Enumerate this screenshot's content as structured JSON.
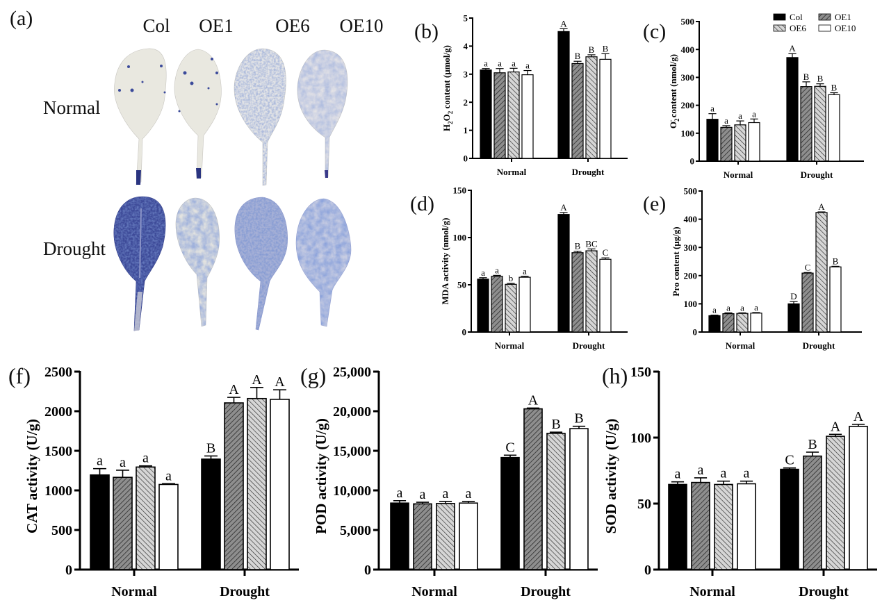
{
  "panel_a": {
    "label": "(a)",
    "columns": [
      "Col",
      "OE1",
      "OE6",
      "OE10"
    ],
    "rows": [
      "Normal",
      "Drought"
    ],
    "staining": {
      "Normal": [
        "sparse spots",
        "sparse spots",
        "moderate diffuse",
        "light diffuse"
      ],
      "Drought": [
        "intense",
        "moderate",
        "strong",
        "strong patchy"
      ]
    }
  },
  "legend": {
    "items": [
      {
        "name": "Col",
        "pattern": "solid-black"
      },
      {
        "name": "OE1",
        "pattern": "dark-hatch-forward"
      },
      {
        "name": "OE6",
        "pattern": "light-hatch-back"
      },
      {
        "name": "OE10",
        "pattern": "white"
      }
    ]
  },
  "chart_data": [
    {
      "id": "b",
      "label": "(b)",
      "type": "bar",
      "ylabel_parts": [
        "H",
        "2",
        "O",
        "2",
        " content (μmol/g)"
      ],
      "ylabel": "H2O2 content (μmol/g)",
      "categories": [
        "Normal",
        "Drought"
      ],
      "ylim": [
        0,
        5
      ],
      "yticks": [
        0,
        1,
        2,
        3,
        4,
        5
      ],
      "series": [
        {
          "name": "Col",
          "values": [
            3.15,
            4.52
          ],
          "errors": [
            0.05,
            0.1
          ],
          "letters": [
            "a",
            "A"
          ]
        },
        {
          "name": "OE1",
          "values": [
            3.05,
            3.38
          ],
          "errors": [
            0.15,
            0.08
          ],
          "letters": [
            "a",
            "B"
          ]
        },
        {
          "name": "OE6",
          "values": [
            3.08,
            3.62
          ],
          "errors": [
            0.13,
            0.07
          ],
          "letters": [
            "a",
            "B"
          ]
        },
        {
          "name": "OE10",
          "values": [
            2.98,
            3.53
          ],
          "errors": [
            0.15,
            0.2
          ],
          "letters": [
            "a",
            "B"
          ]
        }
      ]
    },
    {
      "id": "c",
      "label": "(c)",
      "type": "bar",
      "ylabel": "O2- content (nmol/g)",
      "categories": [
        "Normal",
        "Drought"
      ],
      "ylim": [
        0,
        500
      ],
      "yticks": [
        0,
        100,
        200,
        300,
        400,
        500
      ],
      "show_legend": true,
      "legend_position": "top-right",
      "series": [
        {
          "name": "Col",
          "values": [
            150,
            371
          ],
          "errors": [
            20,
            14
          ],
          "letters": [
            "a",
            "A"
          ]
        },
        {
          "name": "OE1",
          "values": [
            121,
            267
          ],
          "errors": [
            6,
            17
          ],
          "letters": [
            "a",
            "B"
          ]
        },
        {
          "name": "OE6",
          "values": [
            130,
            268
          ],
          "errors": [
            14,
            9
          ],
          "letters": [
            "a",
            "B"
          ]
        },
        {
          "name": "OE10",
          "values": [
            138,
            238
          ],
          "errors": [
            13,
            7
          ],
          "letters": [
            "a",
            "B"
          ]
        }
      ]
    },
    {
      "id": "d",
      "label": "(d)",
      "type": "bar",
      "ylabel": "MDA activity (nmol/g)",
      "categories": [
        "Normal",
        "Drought"
      ],
      "ylim": [
        0,
        150
      ],
      "yticks": [
        0,
        50,
        100,
        150
      ],
      "series": [
        {
          "name": "Col",
          "values": [
            56,
            124.5
          ],
          "errors": [
            1.5,
            2
          ],
          "letters": [
            "a",
            "A"
          ]
        },
        {
          "name": "OE1",
          "values": [
            59,
            84
          ],
          "errors": [
            1,
            1.5
          ],
          "letters": [
            "a",
            "B"
          ]
        },
        {
          "name": "OE6",
          "values": [
            50.5,
            86
          ],
          "errors": [
            1,
            2
          ],
          "letters": [
            "b",
            "BC"
          ]
        },
        {
          "name": "OE10",
          "values": [
            58,
            77
          ],
          "errors": [
            1,
            1.5
          ],
          "letters": [
            "a",
            "C"
          ]
        }
      ]
    },
    {
      "id": "e",
      "label": "(e)",
      "type": "bar",
      "ylabel": "Pro content (μg/g)",
      "categories": [
        "Normal",
        "Drought"
      ],
      "ylim": [
        0,
        500
      ],
      "yticks": [
        0,
        100,
        200,
        300,
        400,
        500
      ],
      "series": [
        {
          "name": "Col",
          "values": [
            58,
            100
          ],
          "errors": [
            2,
            8
          ],
          "letters": [
            "a",
            "D"
          ]
        },
        {
          "name": "OE1",
          "values": [
            65,
            209
          ],
          "errors": [
            3,
            2
          ],
          "letters": [
            "a",
            "C"
          ]
        },
        {
          "name": "OE6",
          "values": [
            66,
            424
          ],
          "errors": [
            2,
            2
          ],
          "letters": [
            "a",
            "A"
          ]
        },
        {
          "name": "OE10",
          "values": [
            67,
            231
          ],
          "errors": [
            2,
            2
          ],
          "letters": [
            "a",
            "B"
          ]
        }
      ]
    },
    {
      "id": "f",
      "label": "(f)",
      "type": "bar",
      "ylabel": "CAT activity (U/g)",
      "categories": [
        "Normal",
        "Drought"
      ],
      "ylim": [
        0,
        2500
      ],
      "yticks": [
        0,
        500,
        1000,
        1500,
        2000,
        2500
      ],
      "series": [
        {
          "name": "Col",
          "values": [
            1195,
            1395
          ],
          "errors": [
            80,
            40
          ],
          "letters": [
            "a",
            "B"
          ]
        },
        {
          "name": "OE1",
          "values": [
            1165,
            2105
          ],
          "errors": [
            90,
            70
          ],
          "letters": [
            "a",
            "A"
          ]
        },
        {
          "name": "OE6",
          "values": [
            1295,
            2160
          ],
          "errors": [
            15,
            140
          ],
          "letters": [
            "a",
            "A"
          ]
        },
        {
          "name": "OE10",
          "values": [
            1075,
            2150
          ],
          "errors": [
            10,
            120
          ],
          "letters": [
            "a",
            "A"
          ]
        }
      ]
    },
    {
      "id": "g",
      "label": "(g)",
      "type": "bar",
      "ylabel": "POD activity (U/g)",
      "categories": [
        "Normal",
        "Drought"
      ],
      "ylim": [
        0,
        25000
      ],
      "yticks": [
        0,
        5000,
        10000,
        15000,
        20000,
        25000
      ],
      "ytick_labels": [
        "0",
        "5,000",
        "10,000",
        "15,000",
        "20,000",
        "25,000"
      ],
      "series": [
        {
          "name": "Col",
          "values": [
            8400,
            14150
          ],
          "errors": [
            300,
            300
          ],
          "letters": [
            "a",
            "C"
          ]
        },
        {
          "name": "OE1",
          "values": [
            8300,
            20300
          ],
          "errors": [
            200,
            100
          ],
          "letters": [
            "a",
            "A"
          ]
        },
        {
          "name": "OE6",
          "values": [
            8350,
            17200
          ],
          "errors": [
            250,
            150
          ],
          "letters": [
            "a",
            "B"
          ]
        },
        {
          "name": "OE10",
          "values": [
            8400,
            17800
          ],
          "errors": [
            200,
            300
          ],
          "letters": [
            "a",
            "B"
          ]
        }
      ]
    },
    {
      "id": "h",
      "label": "(h)",
      "type": "bar",
      "ylabel": "SOD activity (U/g)",
      "categories": [
        "Normal",
        "Drought"
      ],
      "ylim": [
        0,
        150
      ],
      "yticks": [
        0,
        50,
        100,
        150
      ],
      "series": [
        {
          "name": "Col",
          "values": [
            64.5,
            76
          ],
          "errors": [
            2,
            1
          ],
          "letters": [
            "a",
            "C"
          ]
        },
        {
          "name": "OE1",
          "values": [
            66,
            86
          ],
          "errors": [
            3.5,
            3
          ],
          "letters": [
            "a",
            "B"
          ]
        },
        {
          "name": "OE6",
          "values": [
            64.5,
            101
          ],
          "errors": [
            2.5,
            1.5
          ],
          "letters": [
            "a",
            "A"
          ]
        },
        {
          "name": "OE10",
          "values": [
            65,
            108.5
          ],
          "errors": [
            2,
            1.5
          ],
          "letters": [
            "a",
            "A"
          ]
        }
      ]
    }
  ]
}
